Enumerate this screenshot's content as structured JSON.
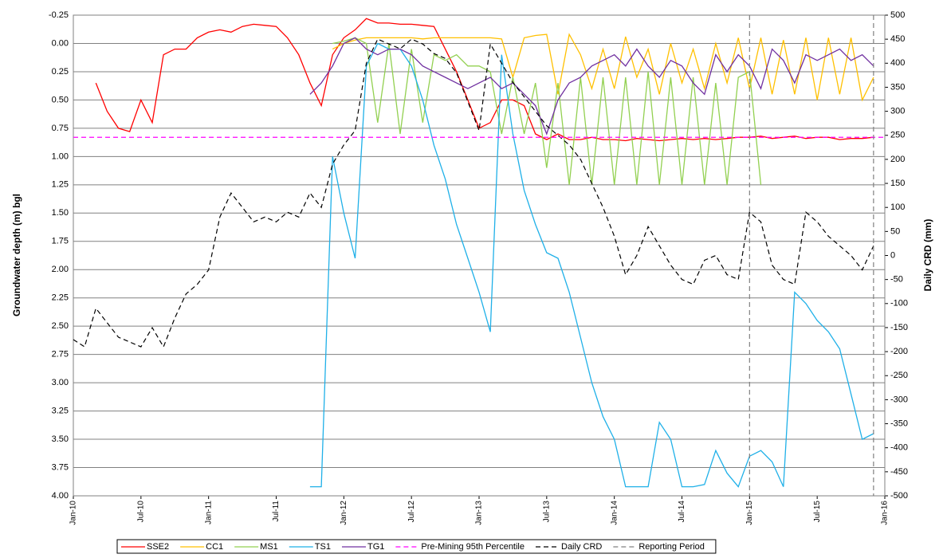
{
  "chart_data": {
    "type": "line",
    "ylabel": "Groundwater depth (m) bgl",
    "y2label": "Daily CRD (mm)",
    "x": [
      "2010-01",
      "2010-02",
      "2010-03",
      "2010-04",
      "2010-05",
      "2010-06",
      "2010-07",
      "2010-08",
      "2010-09",
      "2010-10",
      "2010-11",
      "2010-12",
      "2011-01",
      "2011-02",
      "2011-03",
      "2011-04",
      "2011-05",
      "2011-06",
      "2011-07",
      "2011-08",
      "2011-09",
      "2011-10",
      "2011-11",
      "2011-12",
      "2012-01",
      "2012-02",
      "2012-03",
      "2012-04",
      "2012-05",
      "2012-06",
      "2012-07",
      "2012-08",
      "2012-09",
      "2012-10",
      "2012-11",
      "2012-12",
      "2013-01",
      "2013-02",
      "2013-03",
      "2013-04",
      "2013-05",
      "2013-06",
      "2013-07",
      "2013-08",
      "2013-09",
      "2013-10",
      "2013-11",
      "2013-12",
      "2014-01",
      "2014-02",
      "2014-03",
      "2014-04",
      "2014-05",
      "2014-06",
      "2014-07",
      "2014-08",
      "2014-09",
      "2014-10",
      "2014-11",
      "2014-12",
      "2015-01",
      "2015-02",
      "2015-03",
      "2015-04",
      "2015-05",
      "2015-06",
      "2015-07",
      "2015-08",
      "2015-09",
      "2015-10",
      "2015-11",
      "2015-12"
    ],
    "xlim": [
      "2010-01",
      "2016-01"
    ],
    "xticks": [
      {
        "value": "2010-01",
        "label": "Jan-10"
      },
      {
        "value": "2010-07",
        "label": "Jul-10"
      },
      {
        "value": "2011-01",
        "label": "Jan-11"
      },
      {
        "value": "2011-07",
        "label": "Jul-11"
      },
      {
        "value": "2012-01",
        "label": "Jan-12"
      },
      {
        "value": "2012-07",
        "label": "Jul-12"
      },
      {
        "value": "2013-01",
        "label": "Jan-13"
      },
      {
        "value": "2013-07",
        "label": "Jul-13"
      },
      {
        "value": "2014-01",
        "label": "Jan-14"
      },
      {
        "value": "2014-07",
        "label": "Jul-14"
      },
      {
        "value": "2015-01",
        "label": "Jan-15"
      },
      {
        "value": "2015-07",
        "label": "Jul-15"
      },
      {
        "value": "2016-01",
        "label": "Jan-16"
      }
    ],
    "ylim": [
      4.0,
      -0.25
    ],
    "yticks": [
      -0.25,
      {
        "value": 0,
        "label": "0.00"
      },
      {
        "value": 0.25,
        "label": "0.25"
      },
      {
        "value": 0.5,
        "label": "0.50"
      },
      {
        "value": 0.75,
        "label": "0.75"
      },
      {
        "value": 1,
        "label": "1.00"
      },
      {
        "value": 1.25,
        "label": "1.25"
      },
      {
        "value": 1.5,
        "label": "1.50"
      },
      {
        "value": 1.75,
        "label": "1.75"
      },
      {
        "value": 2,
        "label": "2.00"
      },
      {
        "value": 2.25,
        "label": "2.25"
      },
      {
        "value": 2.5,
        "label": "2.50"
      },
      {
        "value": 2.75,
        "label": "2.75"
      },
      {
        "value": 3,
        "label": "3.00"
      },
      {
        "value": 3.25,
        "label": "3.25"
      },
      {
        "value": 3.5,
        "label": "3.50"
      },
      {
        "value": 3.75,
        "label": "3.75"
      },
      {
        "value": 4,
        "label": "4.00"
      }
    ],
    "y2lim": [
      -500,
      500
    ],
    "y2ticks": [
      500,
      450,
      400,
      350,
      300,
      250,
      200,
      150,
      100,
      50,
      0,
      -50,
      -100,
      -150,
      -200,
      -250,
      -300,
      -350,
      -400,
      -450,
      -500
    ],
    "grid": true,
    "series": [
      {
        "name": "SSE2",
        "color": "#ff0000",
        "style": "solid",
        "values": [
          null,
          null,
          0.35,
          0.6,
          0.75,
          0.78,
          0.5,
          0.7,
          0.1,
          0.05,
          0.05,
          -0.05,
          -0.1,
          -0.12,
          -0.1,
          -0.15,
          -0.17,
          -0.16,
          -0.15,
          -0.05,
          0.1,
          0.35,
          0.55,
          0.1,
          -0.05,
          -0.12,
          -0.22,
          -0.18,
          -0.18,
          -0.17,
          -0.17,
          -0.16,
          -0.15,
          0.05,
          0.25,
          0.5,
          0.75,
          0.7,
          0.5,
          0.5,
          0.55,
          0.8,
          0.85,
          0.8,
          0.85,
          0.85,
          0.83,
          0.85,
          0.85,
          0.86,
          0.84,
          0.85,
          0.86,
          0.85,
          0.84,
          0.85,
          0.84,
          0.85,
          0.84,
          0.83,
          0.83,
          0.82,
          0.84,
          0.83,
          0.82,
          0.84,
          0.83,
          0.83,
          0.85,
          0.84,
          0.84,
          0.83
        ]
      },
      {
        "name": "CC1",
        "color": "#ffc000",
        "style": "solid",
        "values": [
          null,
          null,
          null,
          null,
          null,
          null,
          null,
          null,
          null,
          null,
          null,
          null,
          null,
          null,
          null,
          null,
          null,
          null,
          null,
          null,
          null,
          null,
          null,
          0.05,
          0.0,
          -0.03,
          -0.05,
          -0.05,
          -0.05,
          -0.05,
          -0.05,
          -0.04,
          -0.05,
          -0.05,
          -0.05,
          -0.05,
          -0.05,
          -0.05,
          -0.04,
          0.3,
          -0.05,
          -0.07,
          -0.08,
          0.45,
          -0.08,
          0.1,
          0.4,
          0.05,
          0.4,
          -0.06,
          0.3,
          0.05,
          0.45,
          0.0,
          0.35,
          0.05,
          0.4,
          0.0,
          0.35,
          -0.05,
          0.4,
          -0.05,
          0.45,
          -0.03,
          0.45,
          -0.05,
          0.5,
          -0.05,
          0.45,
          -0.05,
          0.5,
          0.3
        ]
      },
      {
        "name": "MS1",
        "color": "#92d050",
        "style": "solid",
        "values": [
          null,
          null,
          null,
          null,
          null,
          null,
          null,
          null,
          null,
          null,
          null,
          null,
          null,
          null,
          null,
          null,
          null,
          null,
          null,
          null,
          null,
          null,
          null,
          0.0,
          -0.02,
          -0.05,
          0.0,
          0.7,
          0.0,
          0.8,
          0.05,
          0.7,
          0.1,
          0.15,
          0.1,
          0.2,
          0.2,
          0.25,
          0.8,
          0.3,
          0.8,
          0.35,
          1.1,
          0.35,
          1.25,
          0.3,
          1.25,
          0.3,
          1.25,
          0.3,
          1.25,
          0.25,
          1.25,
          0.3,
          1.25,
          0.3,
          1.25,
          0.35,
          1.25,
          0.3,
          0.25,
          1.25,
          null,
          null,
          null,
          null,
          null,
          null,
          null,
          null,
          null,
          null
        ]
      },
      {
        "name": "TS1",
        "color": "#1fb0e8",
        "style": "solid",
        "values": [
          null,
          null,
          null,
          null,
          null,
          null,
          null,
          null,
          null,
          null,
          null,
          null,
          null,
          null,
          null,
          null,
          null,
          null,
          null,
          null,
          null,
          3.92,
          3.92,
          1.0,
          1.5,
          1.9,
          0.2,
          0.0,
          0.05,
          0.05,
          0.2,
          0.5,
          0.9,
          1.2,
          1.6,
          1.9,
          2.2,
          2.55,
          0.1,
          0.8,
          1.3,
          1.6,
          1.85,
          1.9,
          2.2,
          2.6,
          3.0,
          3.3,
          3.5,
          3.92,
          3.92,
          3.92,
          3.35,
          3.5,
          3.92,
          3.92,
          3.9,
          3.6,
          3.8,
          3.92,
          3.65,
          3.6,
          3.7,
          3.92,
          2.2,
          2.3,
          2.45,
          2.55,
          2.7,
          3.1,
          3.5,
          3.45
        ]
      },
      {
        "name": "TG1",
        "color": "#7030a0",
        "style": "solid",
        "values": [
          null,
          null,
          null,
          null,
          null,
          null,
          null,
          null,
          null,
          null,
          null,
          null,
          null,
          null,
          null,
          null,
          null,
          null,
          null,
          null,
          null,
          0.45,
          0.35,
          0.2,
          0.0,
          -0.05,
          0.05,
          0.1,
          0.05,
          0.05,
          0.1,
          0.2,
          0.25,
          0.3,
          0.35,
          0.4,
          0.35,
          0.3,
          0.4,
          0.35,
          0.45,
          0.55,
          0.8,
          0.5,
          0.35,
          0.3,
          0.2,
          0.15,
          0.1,
          0.2,
          0.05,
          0.2,
          0.3,
          0.15,
          0.2,
          0.35,
          0.45,
          0.1,
          0.25,
          0.1,
          0.2,
          0.4,
          0.05,
          0.15,
          0.35,
          0.1,
          0.15,
          0.1,
          0.05,
          0.15,
          0.1,
          0.2
        ]
      },
      {
        "name": "Daily CRD",
        "color": "#000000",
        "style": "dashed",
        "axis": "y2",
        "values": [
          -175,
          -190,
          -110,
          -140,
          -170,
          -180,
          -190,
          -150,
          -190,
          -130,
          -80,
          -60,
          -30,
          80,
          130,
          100,
          70,
          80,
          70,
          90,
          80,
          130,
          100,
          190,
          230,
          260,
          400,
          450,
          440,
          430,
          450,
          440,
          420,
          410,
          380,
          320,
          260,
          440,
          400,
          360,
          330,
          300,
          270,
          250,
          230,
          200,
          150,
          100,
          40,
          -40,
          0,
          60,
          20,
          -20,
          -50,
          -60,
          -10,
          0,
          -40,
          -50,
          90,
          70,
          -20,
          -50,
          -60,
          90,
          70,
          40,
          20,
          0,
          -30,
          20
        ]
      }
    ],
    "hlines": [
      {
        "name": "Pre-Mining 95th Percentile",
        "value": 0.83,
        "color": "#ff00ff",
        "style": "dashed"
      }
    ],
    "vlines": {
      "name": "Reporting Period",
      "color": "#808080",
      "style": "dashed",
      "x": [
        "2015-01",
        "2015-12"
      ]
    }
  }
}
